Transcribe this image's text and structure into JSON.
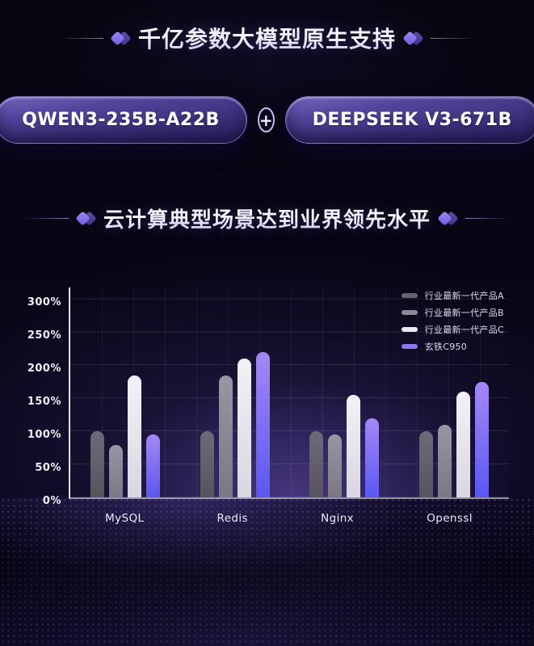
{
  "section1": {
    "title": "千亿参数大模型原生支持",
    "badge_left": "QWEN3-235B-A22B",
    "plus": "+",
    "badge_right": "DEEPSEEK V3-671B"
  },
  "section2": {
    "title": "云计算典型场景达到业界领先水平"
  },
  "chart_data": {
    "type": "bar",
    "categories": [
      "MySQL",
      "Redis",
      "Nginx",
      "Openssl"
    ],
    "series": [
      {
        "name": "行业最新一代产品A",
        "color_top": "#6e6a79",
        "color_bottom": "#57535f",
        "legend_color": "#66626f",
        "values": [
          100,
          100,
          100,
          100
        ]
      },
      {
        "name": "行业最新一代产品B",
        "color_top": "#9995a3",
        "color_bottom": "#7b7785",
        "legend_color": "#8d8996",
        "values": [
          80,
          185,
          95,
          110
        ]
      },
      {
        "name": "行业最新一代产品C",
        "color_top": "#f3f1f7",
        "color_bottom": "#d9d6e2",
        "legend_color": "#e9e7ef",
        "values": [
          185,
          210,
          155,
          160
        ]
      },
      {
        "name": "玄铁C950",
        "color_top": "#a488f7",
        "color_bottom": "#5b57f2",
        "legend_color": "#8a78f5",
        "values": [
          95,
          220,
          120,
          175
        ]
      }
    ],
    "title": "",
    "xlabel": "",
    "ylabel": "",
    "unit": "%",
    "ylim": [
      0,
      320
    ],
    "yticks": [
      {
        "label": "0%",
        "value": 0
      },
      {
        "label": "50%",
        "value": 50
      },
      {
        "label": "100%",
        "value": 100
      },
      {
        "label": "150%",
        "value": 150
      },
      {
        "label": "200%",
        "value": 200
      },
      {
        "label": "250%",
        "value": 250
      },
      {
        "label": "300%",
        "value": 300
      }
    ],
    "grid": true,
    "legend_position": "top-right"
  }
}
